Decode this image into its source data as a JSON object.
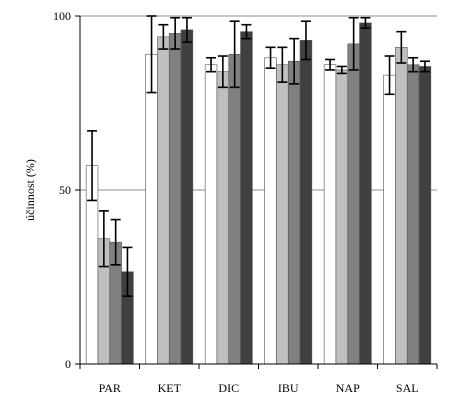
{
  "chart_data": {
    "type": "bar",
    "ylabel": "účinnost (%)",
    "ylim": [
      0,
      100
    ],
    "yticks": [
      0,
      50,
      100
    ],
    "grid": true,
    "categories": [
      "PAR",
      "KET",
      "DIC",
      "IBU",
      "NAP",
      "SAL"
    ],
    "series_colors": [
      "#ffffff",
      "#bfbfbf",
      "#808080",
      "#404040"
    ],
    "series": [
      {
        "values": [
          57,
          89,
          86,
          88,
          86,
          83
        ],
        "errors": [
          10,
          11,
          2,
          3,
          1.5,
          5.5
        ]
      },
      {
        "values": [
          36,
          94,
          84,
          86,
          84.5,
          91
        ],
        "errors": [
          8,
          3.5,
          4.5,
          5,
          1,
          4.5
        ]
      },
      {
        "values": [
          35,
          95,
          89,
          87,
          92,
          86
        ],
        "errors": [
          6.5,
          4.5,
          9.5,
          6.5,
          7.5,
          2
        ]
      },
      {
        "values": [
          26.5,
          96,
          95.5,
          93,
          98,
          85.5
        ],
        "errors": [
          7,
          3.5,
          2,
          5.5,
          1.5,
          1.5
        ]
      }
    ]
  }
}
